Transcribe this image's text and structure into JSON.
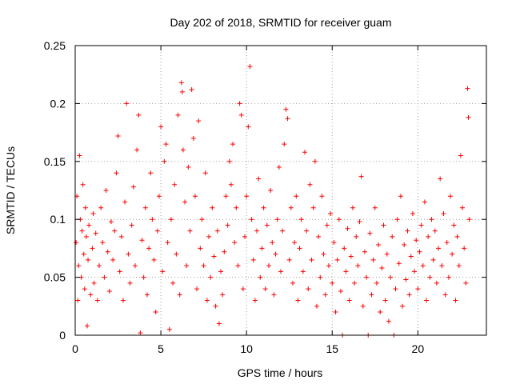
{
  "chart_data": {
    "type": "scatter",
    "title": "Day 202 of 2018, SRMTID for receiver guam",
    "xlabel": "GPS time / hours",
    "ylabel": "SRMTID / TECUs",
    "xlim": [
      0,
      24
    ],
    "ylim": [
      0,
      0.25
    ],
    "x_ticks": [
      0,
      5,
      10,
      15,
      20
    ],
    "x_tick_labels": [
      "0",
      "5",
      "10",
      "15",
      "20"
    ],
    "y_ticks": [
      0,
      0.05,
      0.1,
      0.15,
      0.2,
      0.25
    ],
    "y_tick_labels": [
      "0",
      "0.05",
      "0.1",
      "0.15",
      "0.2",
      "0.25"
    ],
    "grid": true,
    "marker": "+",
    "series_color": "#ff0000",
    "series": [
      {
        "name": "SRMTID",
        "points": [
          [
            0.05,
            0.08
          ],
          [
            0.1,
            0.12
          ],
          [
            0.15,
            0.03
          ],
          [
            0.2,
            0.06
          ],
          [
            0.25,
            0.155
          ],
          [
            0.3,
            0.1
          ],
          [
            0.35,
            0.05
          ],
          [
            0.4,
            0.09
          ],
          [
            0.45,
            0.13
          ],
          [
            0.5,
            0.07
          ],
          [
            0.55,
            0.04
          ],
          [
            0.6,
            0.11
          ],
          [
            0.65,
            0.085
          ],
          [
            0.7,
            0.008
          ],
          [
            0.75,
            0.065
          ],
          [
            0.8,
            0.095
          ],
          [
            0.9,
            0.035
          ],
          [
            1.0,
            0.075
          ],
          [
            1.05,
            0.105
          ],
          [
            1.1,
            0.045
          ],
          [
            1.2,
            0.088
          ],
          [
            1.3,
            0.03
          ],
          [
            1.4,
            0.06
          ],
          [
            1.5,
            0.11
          ],
          [
            1.6,
            0.08
          ],
          [
            1.7,
            0.05
          ],
          [
            1.8,
            0.125
          ],
          [
            1.9,
            0.072
          ],
          [
            2.0,
            0.038
          ],
          [
            2.1,
            0.098
          ],
          [
            2.2,
            0.065
          ],
          [
            2.3,
            0.09
          ],
          [
            2.4,
            0.14
          ],
          [
            2.5,
            0.172
          ],
          [
            2.6,
            0.055
          ],
          [
            2.7,
            0.085
          ],
          [
            2.8,
            0.03
          ],
          [
            2.9,
            0.115
          ],
          [
            3.0,
            0.2
          ],
          [
            3.1,
            0.07
          ],
          [
            3.2,
            0.045
          ],
          [
            3.3,
            0.095
          ],
          [
            3.4,
            0.128
          ],
          [
            3.5,
            0.06
          ],
          [
            3.6,
            0.16
          ],
          [
            3.7,
            0.19
          ],
          [
            3.8,
            0.002
          ],
          [
            3.9,
            0.082
          ],
          [
            4.0,
            0.05
          ],
          [
            4.1,
            0.11
          ],
          [
            4.2,
            0.035
          ],
          [
            4.3,
            0.075
          ],
          [
            4.4,
            0.14
          ],
          [
            4.5,
            0.1
          ],
          [
            4.6,
            0.065
          ],
          [
            4.7,
            0.02
          ],
          [
            4.8,
            0.09
          ],
          [
            4.9,
            0.12
          ],
          [
            5.0,
            0.18
          ],
          [
            5.1,
            0.055
          ],
          [
            5.2,
            0.15
          ],
          [
            5.3,
            0.165
          ],
          [
            5.4,
            0.08
          ],
          [
            5.5,
            0.005
          ],
          [
            5.6,
            0.1
          ],
          [
            5.7,
            0.045
          ],
          [
            5.8,
            0.13
          ],
          [
            5.9,
            0.07
          ],
          [
            6.0,
            0.19
          ],
          [
            6.1,
            0.035
          ],
          [
            6.2,
            0.218
          ],
          [
            6.25,
            0.21
          ],
          [
            6.3,
            0.16
          ],
          [
            6.4,
            0.115
          ],
          [
            6.5,
            0.06
          ],
          [
            6.6,
            0.145
          ],
          [
            6.7,
            0.09
          ],
          [
            6.8,
            0.212
          ],
          [
            6.9,
            0.17
          ],
          [
            7.0,
            0.12
          ],
          [
            7.1,
            0.04
          ],
          [
            7.2,
            0.185
          ],
          [
            7.3,
            0.075
          ],
          [
            7.4,
            0.1
          ],
          [
            7.5,
            0.06
          ],
          [
            7.6,
            0.14
          ],
          [
            7.7,
            0.03
          ],
          [
            7.8,
            0.085
          ],
          [
            7.9,
            0.05
          ],
          [
            8.0,
            0.11
          ],
          [
            8.1,
            0.068
          ],
          [
            8.2,
            0.025
          ],
          [
            8.3,
            0.09
          ],
          [
            8.4,
            0.01
          ],
          [
            8.5,
            0.055
          ],
          [
            8.6,
            0.035
          ],
          [
            8.7,
            0.072
          ],
          [
            8.8,
            0.12
          ],
          [
            8.9,
            0.095
          ],
          [
            9.0,
            0.15
          ],
          [
            9.1,
            0.13
          ],
          [
            9.2,
            0.165
          ],
          [
            9.3,
            0.08
          ],
          [
            9.4,
            0.11
          ],
          [
            9.5,
            0.06
          ],
          [
            9.6,
            0.2
          ],
          [
            9.7,
            0.19
          ],
          [
            9.8,
            0.04
          ],
          [
            9.9,
            0.085
          ],
          [
            10.0,
            0.12
          ],
          [
            10.1,
            0.18
          ],
          [
            10.2,
            0.232
          ],
          [
            10.3,
            0.1
          ],
          [
            10.4,
            0.065
          ],
          [
            10.5,
            0.03
          ],
          [
            10.6,
            0.09
          ],
          [
            10.7,
            0.135
          ],
          [
            10.8,
            0.05
          ],
          [
            10.9,
            0.075
          ],
          [
            11.0,
            0.11
          ],
          [
            11.1,
            0.04
          ],
          [
            11.2,
            0.095
          ],
          [
            11.3,
            0.06
          ],
          [
            11.4,
            0.125
          ],
          [
            11.5,
            0.08
          ],
          [
            11.6,
            0.035
          ],
          [
            11.7,
            0.07
          ],
          [
            11.8,
            0.1
          ],
          [
            11.9,
            0.145
          ],
          [
            12.0,
            0.055
          ],
          [
            12.1,
            0.09
          ],
          [
            12.2,
            0.165
          ],
          [
            12.3,
            0.195
          ],
          [
            12.4,
            0.187
          ],
          [
            12.5,
            0.065
          ],
          [
            12.6,
            0.11
          ],
          [
            12.7,
            0.045
          ],
          [
            12.8,
            0.08
          ],
          [
            12.9,
            0.12
          ],
          [
            13.0,
            0.03
          ],
          [
            13.1,
            0.075
          ],
          [
            13.2,
            0.1
          ],
          [
            13.3,
            0.055
          ],
          [
            13.4,
            0.158
          ],
          [
            13.5,
            0.09
          ],
          [
            13.6,
            0.04
          ],
          [
            13.7,
            0.13
          ],
          [
            13.8,
            0.065
          ],
          [
            13.9,
            0.11
          ],
          [
            14.0,
            0.15
          ],
          [
            14.1,
            0.025
          ],
          [
            14.2,
            0.085
          ],
          [
            14.3,
            0.05
          ],
          [
            14.4,
            0.12
          ],
          [
            14.5,
            0.07
          ],
          [
            14.6,
            0.035
          ],
          [
            14.7,
            0.095
          ],
          [
            14.8,
            0.06
          ],
          [
            14.9,
            0.105
          ],
          [
            15.0,
            0.045
          ],
          [
            15.1,
            0.08
          ],
          [
            15.2,
            0.02
          ],
          [
            15.3,
            0.065
          ],
          [
            15.4,
            0.1
          ],
          [
            15.5,
            0.038
          ],
          [
            15.6,
            0.0
          ],
          [
            15.7,
            0.075
          ],
          [
            15.8,
            0.055
          ],
          [
            15.9,
            0.092
          ],
          [
            16.0,
            0.03
          ],
          [
            16.1,
            0.068
          ],
          [
            16.2,
            0.11
          ],
          [
            16.3,
            0.045
          ],
          [
            16.4,
            0.085
          ],
          [
            16.5,
            0.06
          ],
          [
            16.6,
            0.098
          ],
          [
            16.7,
            0.137
          ],
          [
            16.8,
            0.025
          ],
          [
            16.9,
            0.072
          ],
          [
            17.0,
            0.05
          ],
          [
            17.1,
            0.0
          ],
          [
            17.2,
            0.088
          ],
          [
            17.3,
            0.035
          ],
          [
            17.4,
            0.065
          ],
          [
            17.5,
            0.11
          ],
          [
            17.6,
            0.045
          ],
          [
            17.7,
            0.078
          ],
          [
            17.8,
            0.02
          ],
          [
            17.9,
            0.058
          ],
          [
            18.0,
            0.095
          ],
          [
            18.1,
            0.03
          ],
          [
            18.2,
            0.07
          ],
          [
            18.3,
            0.012
          ],
          [
            18.4,
            0.05
          ],
          [
            18.5,
            0.085
          ],
          [
            18.6,
            0.0
          ],
          [
            18.7,
            0.04
          ],
          [
            18.8,
            0.1
          ],
          [
            18.9,
            0.062
          ],
          [
            19.0,
            0.12
          ],
          [
            19.1,
            0.025
          ],
          [
            19.2,
            0.078
          ],
          [
            19.3,
            0.048
          ],
          [
            19.4,
            0.09
          ],
          [
            19.5,
            0.035
          ],
          [
            19.6,
            0.068
          ],
          [
            19.7,
            0.105
          ],
          [
            19.8,
            0.055
          ],
          [
            19.9,
            0.082
          ],
          [
            20.0,
            0.04
          ],
          [
            20.1,
            0.072
          ],
          [
            20.2,
            0.095
          ],
          [
            20.3,
            0.06
          ],
          [
            20.4,
            0.115
          ],
          [
            20.5,
            0.03
          ],
          [
            20.6,
            0.085
          ],
          [
            20.7,
            0.05
          ],
          [
            20.8,
            0.1
          ],
          [
            20.9,
            0.065
          ],
          [
            21.0,
            0.09
          ],
          [
            21.1,
            0.045
          ],
          [
            21.2,
            0.075
          ],
          [
            21.3,
            0.135
          ],
          [
            21.4,
            0.06
          ],
          [
            21.5,
            0.105
          ],
          [
            21.6,
            0.035
          ],
          [
            21.7,
            0.08
          ],
          [
            21.8,
            0.05
          ],
          [
            21.9,
            0.12
          ],
          [
            22.0,
            0.07
          ],
          [
            22.1,
            0.095
          ],
          [
            22.2,
            0.03
          ],
          [
            22.3,
            0.085
          ],
          [
            22.4,
            0.06
          ],
          [
            22.5,
            0.155
          ],
          [
            22.6,
            0.11
          ],
          [
            22.7,
            0.075
          ],
          [
            22.8,
            0.045
          ],
          [
            22.9,
            0.213
          ],
          [
            22.95,
            0.188
          ],
          [
            23.0,
            0.1
          ]
        ]
      }
    ]
  }
}
